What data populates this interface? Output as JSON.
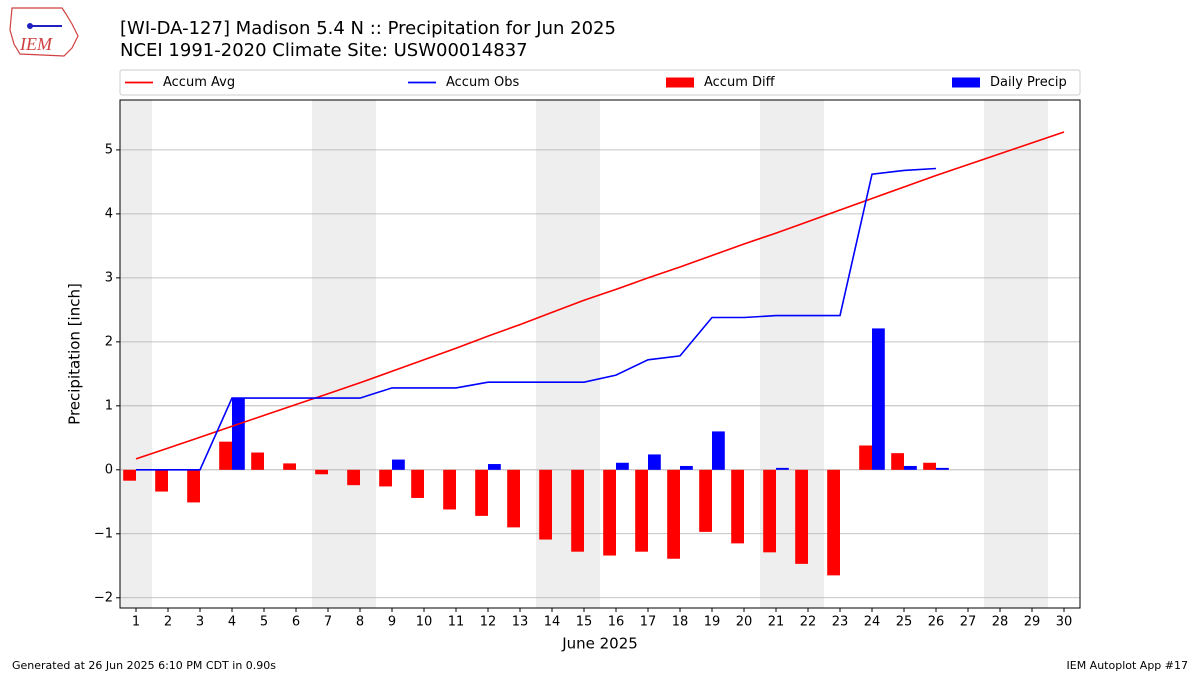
{
  "chart_data": {
    "type": "line_bar",
    "logo_text": "IEM",
    "title": "[WI-DA-127] Madison 5.4 N :: Precipitation for Jun 2025",
    "subtitle": "NCEI 1991-2020 Climate Site: USW00014837",
    "xlabel": "June 2025",
    "ylabel": "Precipitation [inch]",
    "footer_left": "Generated at 26 Jun 2025 6:10 PM CDT in 0.90s",
    "footer_right": "IEM Autoplot App #17",
    "x": [
      1,
      2,
      3,
      4,
      5,
      6,
      7,
      8,
      9,
      10,
      11,
      12,
      13,
      14,
      15,
      16,
      17,
      18,
      19,
      20,
      21,
      22,
      23,
      24,
      25,
      26,
      27,
      28,
      29,
      30
    ],
    "xlim": [
      0.5,
      30.5
    ],
    "xticks": [
      1,
      2,
      3,
      4,
      5,
      6,
      7,
      8,
      9,
      10,
      11,
      12,
      13,
      14,
      15,
      16,
      17,
      18,
      19,
      20,
      21,
      22,
      23,
      24,
      25,
      26,
      27,
      28,
      29,
      30
    ],
    "ylim": [
      -2.16,
      5.78
    ],
    "yticks": [
      {
        "value": -2,
        "label": "−2"
      },
      {
        "value": -1,
        "label": "−1"
      },
      0,
      1,
      2,
      3,
      4,
      5
    ],
    "grid": true,
    "weekend_days": [
      1,
      7,
      8,
      14,
      15,
      21,
      22,
      28,
      29
    ],
    "weekend_color": "#eeeeee",
    "series": [
      {
        "name": "Accum Avg",
        "kind": "line",
        "color": "#ff0000",
        "values": [
          0.17,
          0.34,
          0.51,
          0.68,
          0.85,
          1.02,
          1.19,
          1.36,
          1.54,
          1.72,
          1.9,
          2.09,
          2.27,
          2.46,
          2.65,
          2.82,
          3.0,
          3.17,
          3.35,
          3.53,
          3.7,
          3.88,
          4.06,
          4.24,
          4.42,
          4.6,
          4.77,
          4.94,
          5.11,
          5.28
        ]
      },
      {
        "name": "Accum Obs",
        "kind": "line",
        "color": "#0000ff",
        "values": [
          0,
          0,
          0,
          1.12,
          1.12,
          1.12,
          1.12,
          1.12,
          1.28,
          1.28,
          1.28,
          1.37,
          1.37,
          1.37,
          1.37,
          1.48,
          1.72,
          1.78,
          2.38,
          2.38,
          2.41,
          2.41,
          2.41,
          4.62,
          4.68,
          4.71,
          null,
          null,
          null,
          null
        ]
      },
      {
        "name": "Accum Diff",
        "kind": "bar",
        "color": "#ff0000",
        "values": [
          -0.17,
          -0.34,
          -0.51,
          0.44,
          0.27,
          0.1,
          -0.07,
          -0.24,
          -0.26,
          -0.44,
          -0.62,
          -0.72,
          -0.9,
          -1.09,
          -1.28,
          -1.34,
          -1.28,
          -1.39,
          -0.97,
          -1.15,
          -1.29,
          -1.47,
          -1.65,
          0.38,
          0.26,
          0.11,
          null,
          null,
          null,
          null
        ]
      },
      {
        "name": "Daily Precip",
        "kind": "bar",
        "color": "#0000ff",
        "values": [
          0,
          0,
          0,
          1.12,
          0,
          0,
          0,
          0,
          0.16,
          0,
          0,
          0.09,
          0,
          0,
          0,
          0.11,
          0.24,
          0.06,
          0.6,
          0,
          0.03,
          0,
          0,
          2.21,
          0.06,
          0.03,
          null,
          null,
          null,
          null
        ]
      }
    ]
  }
}
